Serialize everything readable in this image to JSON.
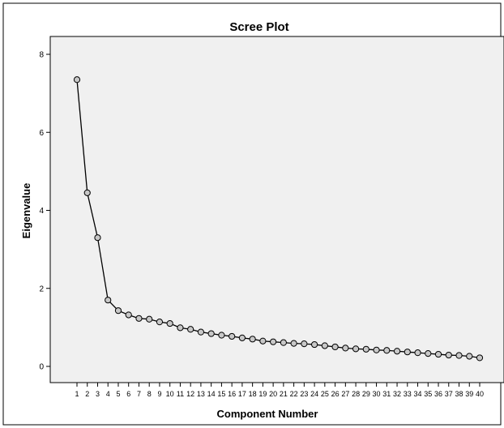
{
  "chart_data": {
    "type": "line",
    "title": "Scree Plot",
    "xlabel": "Component Number",
    "ylabel": "Eigenvalue",
    "x": [
      1,
      2,
      3,
      4,
      5,
      6,
      7,
      8,
      9,
      10,
      11,
      12,
      13,
      14,
      15,
      16,
      17,
      18,
      19,
      20,
      21,
      22,
      23,
      24,
      25,
      26,
      27,
      28,
      29,
      30,
      31,
      32,
      33,
      34,
      35,
      36,
      37,
      38,
      39,
      40
    ],
    "ylim": [
      0,
      8
    ],
    "yticks": [
      "0",
      "2",
      "4",
      "6",
      "8"
    ],
    "grid": false,
    "series": [
      {
        "values": [
          7.35,
          4.45,
          3.3,
          1.7,
          1.43,
          1.32,
          1.23,
          1.21,
          1.14,
          1.1,
          0.99,
          0.95,
          0.88,
          0.84,
          0.8,
          0.77,
          0.73,
          0.7,
          0.65,
          0.63,
          0.61,
          0.59,
          0.58,
          0.56,
          0.53,
          0.5,
          0.47,
          0.45,
          0.44,
          0.42,
          0.41,
          0.39,
          0.37,
          0.35,
          0.33,
          0.31,
          0.29,
          0.28,
          0.26,
          0.22
        ]
      }
    ],
    "colors": {
      "plot_background": "#f0f0f0",
      "line": "#000000",
      "marker_fill": "#c8c8c8"
    }
  }
}
